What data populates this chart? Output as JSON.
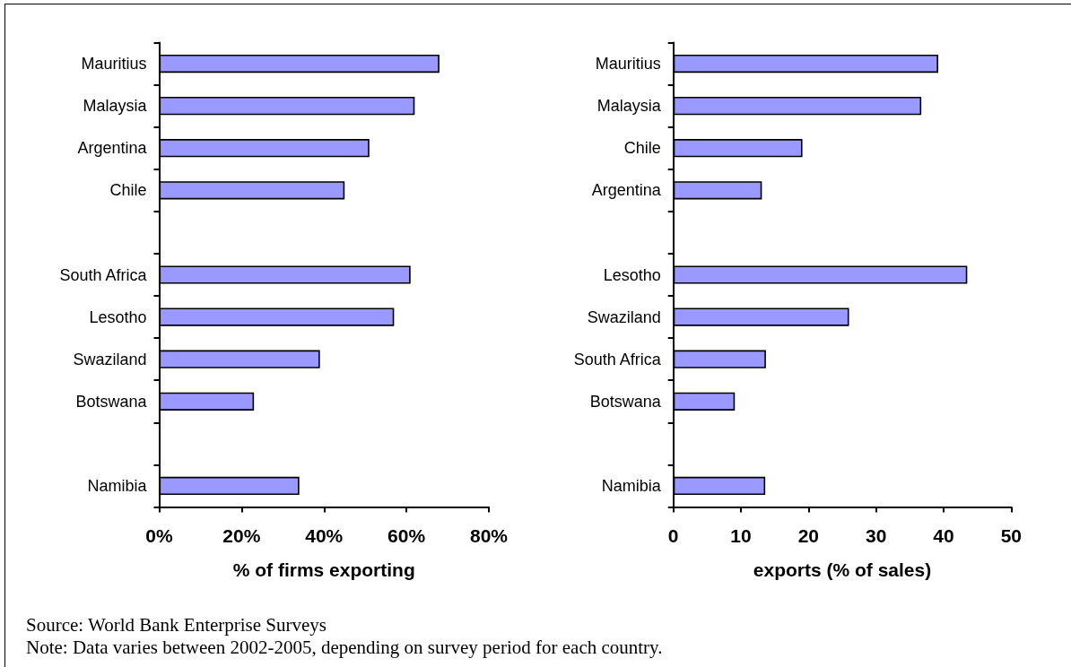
{
  "chart_data": [
    {
      "type": "bar",
      "orientation": "horizontal",
      "categories": [
        "Mauritius",
        "Malaysia",
        "Argentina",
        "Chile",
        null,
        "South Africa",
        "Lesotho",
        "Swaziland",
        "Botswana",
        null,
        "Namibia"
      ],
      "values": [
        68,
        62,
        51,
        45,
        null,
        61,
        57,
        39,
        23,
        null,
        34
      ],
      "color": "#9999ff",
      "xlabel": "% of firms exporting",
      "xlim": [
        0,
        80
      ],
      "xticks": [
        {
          "value": 0,
          "label": "0%"
        },
        {
          "value": 20,
          "label": "20%"
        },
        {
          "value": 40,
          "label": "40%"
        },
        {
          "value": 60,
          "label": "60%"
        },
        {
          "value": 80,
          "label": "80%"
        }
      ],
      "annotations": [
        "Source: World Bank Enterprise Surveys",
        "Note: Data varies between 2002-2005, depending on survey period for each country."
      ]
    },
    {
      "type": "bar",
      "orientation": "horizontal",
      "categories": [
        "Mauritius",
        "Malaysia",
        "Chile",
        "Argentina",
        null,
        "Lesotho",
        "Swaziland",
        "South Africa",
        "Botswana",
        null,
        "Namibia"
      ],
      "values": [
        39.2,
        36.7,
        19.1,
        13.1,
        null,
        43.5,
        26,
        13.7,
        9.1,
        null,
        13.6
      ],
      "color": "#9999ff",
      "xlabel": "exports (% of sales)",
      "xlim": [
        0,
        50
      ],
      "xticks": [
        0,
        10,
        20,
        30,
        40,
        50
      ]
    }
  ]
}
